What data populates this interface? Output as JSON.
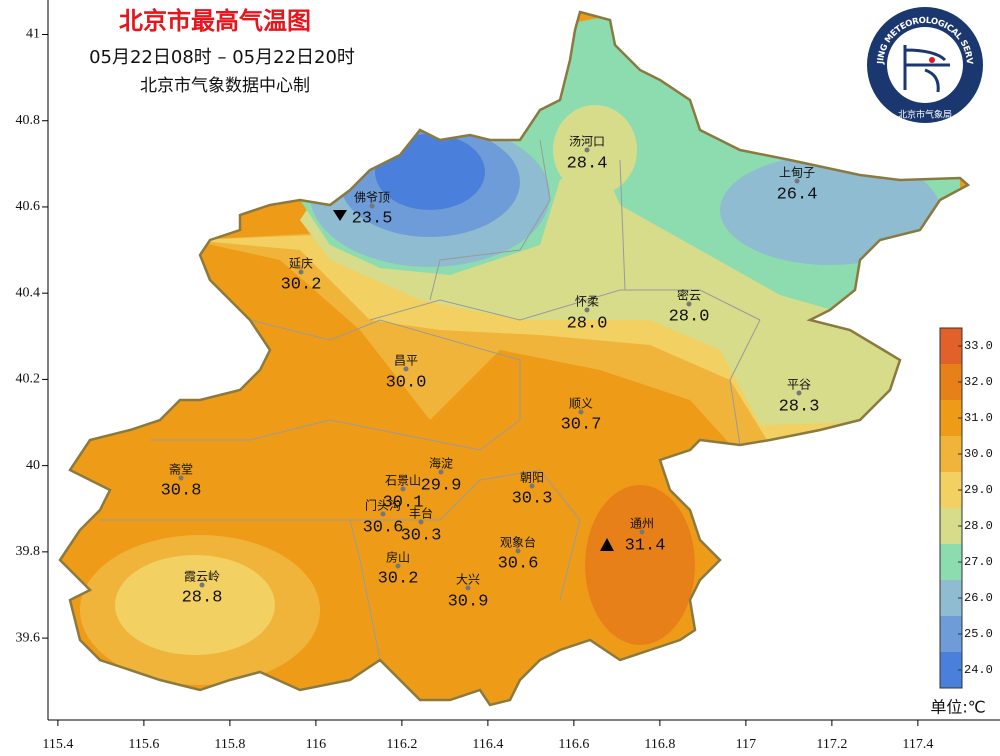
{
  "header": {
    "title": "北京市最高气温图",
    "time_range": "05月22日08时 – 05月22日20时",
    "producer": "北京市气象数据中心制"
  },
  "logo": {
    "ring_text": "BEIJING METEOROLOGICAL SERVICE",
    "bottom_text": "北京市气象局"
  },
  "map": {
    "xlim": [
      115.377,
      117.591
    ],
    "ylim": [
      39.41,
      41.08
    ],
    "xticks": [
      115.4,
      115.6,
      115.8,
      116,
      116.2,
      116.4,
      116.6,
      116.8,
      117,
      117.2,
      117.4
    ],
    "yticks": [
      39.6,
      39.8,
      40,
      40.2,
      40.4,
      40.6,
      40.8,
      41
    ]
  },
  "stations": [
    {
      "name": "汤河口",
      "value": "28.4"
    },
    {
      "name": "上甸子",
      "value": "26.4"
    },
    {
      "name": "佛爷顶",
      "value": "23.5"
    },
    {
      "name": "延庆",
      "value": "30.2"
    },
    {
      "name": "怀柔",
      "value": "28.0"
    },
    {
      "name": "密云",
      "value": "28.0"
    },
    {
      "name": "昌平",
      "value": "30.0"
    },
    {
      "name": "平谷",
      "value": "28.3"
    },
    {
      "name": "顺义",
      "value": "30.7"
    },
    {
      "name": "海淀",
      "value": "29.9"
    },
    {
      "name": "朝阳",
      "value": "30.3"
    },
    {
      "name": "斋堂",
      "value": "30.8"
    },
    {
      "name": "石景山",
      "value": "30.1"
    },
    {
      "name": "门头沟",
      "value": "30.6"
    },
    {
      "name": "丰台",
      "value": "30.3"
    },
    {
      "name": "通州",
      "value": "31.4"
    },
    {
      "name": "观象台",
      "value": "30.6"
    },
    {
      "name": "霞云岭",
      "value": "28.8"
    },
    {
      "name": "房山",
      "value": "30.2"
    },
    {
      "name": "大兴",
      "value": "30.9"
    }
  ],
  "colorbar": {
    "lim": [
      23.5,
      33.5
    ],
    "ticks": [
      {
        "value": 24,
        "label": "24.0"
      },
      {
        "value": 25,
        "label": "25.0"
      },
      {
        "value": 26,
        "label": "26.0"
      },
      {
        "value": 27,
        "label": "27.0"
      },
      {
        "value": 28,
        "label": "28.0"
      },
      {
        "value": 29,
        "label": "29.0"
      },
      {
        "value": 30,
        "label": "30.0"
      },
      {
        "value": 31,
        "label": "31.0"
      },
      {
        "value": 32,
        "label": "32.0"
      },
      {
        "value": 33,
        "label": "33.0"
      }
    ],
    "colors": [
      "#4a80dc",
      "#6e9cd8",
      "#8fbcd0",
      "#8cdcb0",
      "#d6dc8a",
      "#f2d062",
      "#f1b43a",
      "#ee9c18",
      "#e8801a",
      "#e2602a"
    ]
  },
  "unit": "单位:℃"
}
